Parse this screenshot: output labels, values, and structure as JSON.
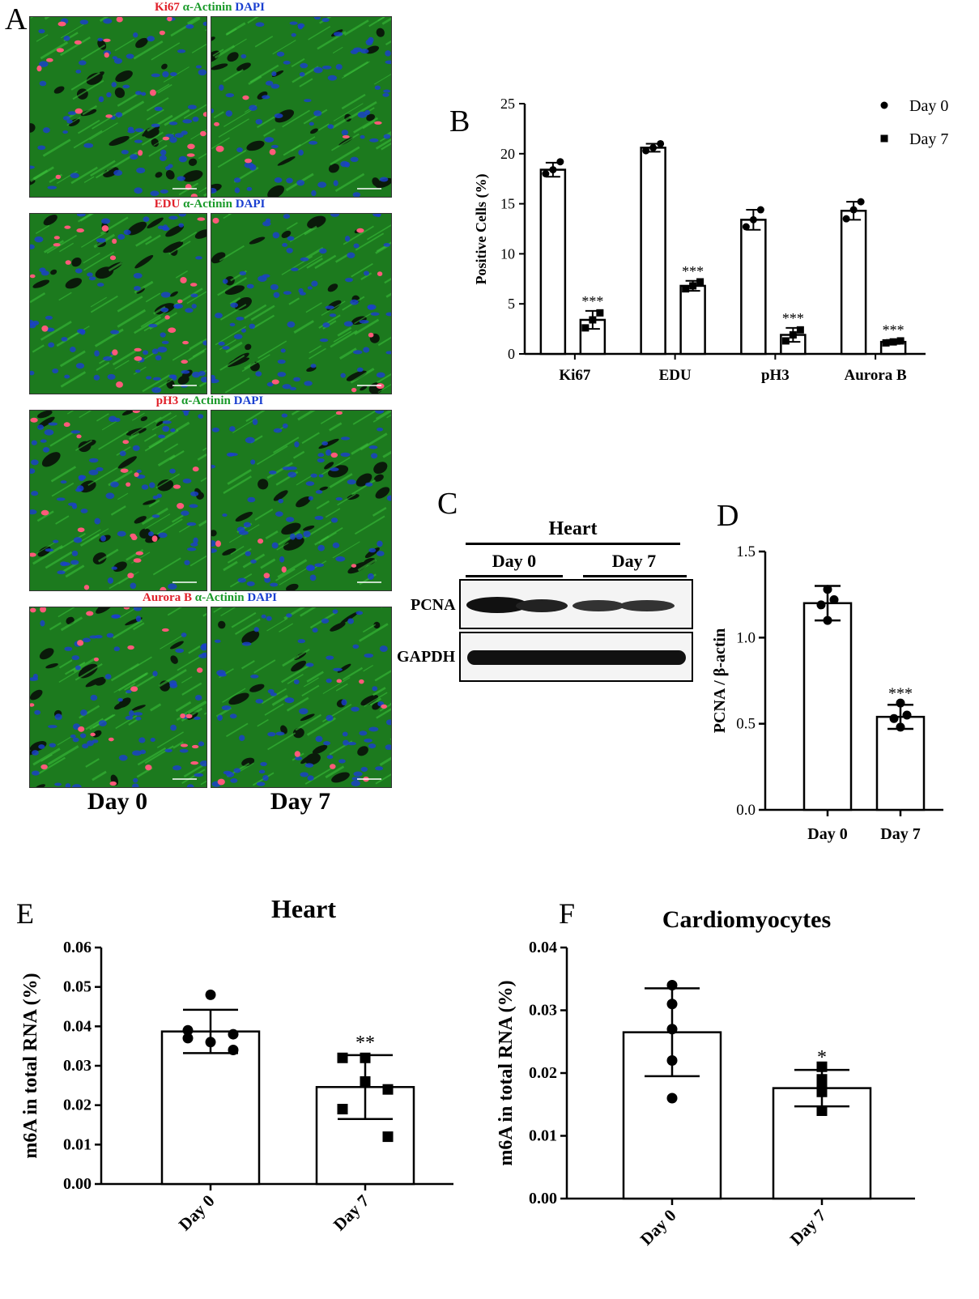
{
  "panelA": {
    "letter": "A",
    "rows": [
      {
        "marker": "Ki67",
        "actinin": "α-Actinin",
        "dapi": "DAPI"
      },
      {
        "marker": "EDU",
        "actinin": "α-Actinin",
        "dapi": "DAPI"
      },
      {
        "marker": "pH3",
        "actinin": "α-Actinin",
        "dapi": "DAPI"
      },
      {
        "marker": "Aurora B",
        "actinin": "α-Actinin",
        "dapi": "DAPI"
      }
    ],
    "group_labels": [
      "Day 0",
      "Day 7"
    ],
    "colors": {
      "marker": "#e0202a",
      "actinin": "#1a9a2a",
      "dapi": "#1a3fd0",
      "tissue": "#1c7a1e"
    }
  },
  "panelC": {
    "letter": "C",
    "tissue": "Heart",
    "groups": [
      "Day 0",
      "Day 7"
    ],
    "bands": [
      "PCNA",
      "GAPDH"
    ]
  },
  "chart_data": [
    {
      "id": "B",
      "letter": "B",
      "type": "bar",
      "categories": [
        "Ki67",
        "EDU",
        "pH3",
        "Aurora B"
      ],
      "series": [
        {
          "name": "Day 0",
          "values": [
            18.4,
            20.6,
            13.4,
            14.3
          ],
          "sd": [
            0.7,
            0.4,
            1.0,
            0.9
          ],
          "points": [
            [
              18.0,
              18.4,
              19.2
            ],
            [
              20.3,
              20.6,
              21.0
            ],
            [
              12.7,
              13.4,
              14.4
            ],
            [
              13.5,
              14.4,
              15.2
            ]
          ],
          "marker": "circle"
        },
        {
          "name": "Day 7",
          "values": [
            3.4,
            6.8,
            1.9,
            1.2
          ],
          "sd": [
            0.9,
            0.5,
            0.7,
            0.2
          ],
          "points": [
            [
              2.6,
              3.4,
              4.1
            ],
            [
              6.5,
              6.8,
              7.2
            ],
            [
              1.3,
              1.9,
              2.4
            ],
            [
              1.1,
              1.2,
              1.3
            ]
          ],
          "marker": "square"
        }
      ],
      "significance": [
        "***",
        "***",
        "***",
        "***"
      ],
      "ylabel": "Positive Cells (%)",
      "ylim": [
        0,
        25
      ],
      "yticks": [
        "0",
        "5",
        "10",
        "15",
        "20",
        "25"
      ],
      "legend": "top-right"
    },
    {
      "id": "D",
      "letter": "D",
      "type": "bar",
      "categories": [
        "Day 0",
        "Day 7"
      ],
      "values": [
        1.2,
        0.54
      ],
      "sd": [
        0.1,
        0.07
      ],
      "points": [
        [
          1.1,
          1.19,
          1.22,
          1.28
        ],
        [
          0.48,
          0.53,
          0.55,
          0.62
        ]
      ],
      "markers": [
        "circle",
        "circle"
      ],
      "significance": [
        "",
        "***"
      ],
      "ylabel": "PCNA / β-actin",
      "ylim": [
        0,
        1.5
      ],
      "yticks": [
        "0.0",
        "0.5",
        "1.0",
        "1.5"
      ]
    },
    {
      "id": "E",
      "letter": "E",
      "type": "bar",
      "title": "Heart",
      "categories": [
        "Day 0",
        "Day 7"
      ],
      "values": [
        0.0387,
        0.0246
      ],
      "sd": [
        0.0055,
        0.0081
      ],
      "points": [
        [
          0.048,
          0.039,
          0.036,
          0.034,
          0.037,
          0.038
        ],
        [
          0.032,
          0.032,
          0.026,
          0.024,
          0.019,
          0.012
        ]
      ],
      "markers": [
        "circle",
        "square"
      ],
      "significance": [
        "",
        "**"
      ],
      "ylabel": "m6A in total RNA (%)",
      "ylim": [
        0,
        0.06
      ],
      "yticks": [
        "0.00",
        "0.01",
        "0.02",
        "0.03",
        "0.04",
        "0.05",
        "0.06"
      ]
    },
    {
      "id": "F",
      "letter": "F",
      "type": "bar",
      "title": "Cardiomyocytes",
      "categories": [
        "Day 0",
        "Day 7"
      ],
      "values": [
        0.0265,
        0.0176
      ],
      "sd": [
        0.007,
        0.0029
      ],
      "points": [
        [
          0.034,
          0.031,
          0.027,
          0.022,
          0.016
        ],
        [
          0.021,
          0.019,
          0.018,
          0.017,
          0.014
        ]
      ],
      "markers": [
        "circle",
        "square"
      ],
      "significance": [
        "",
        "*"
      ],
      "ylabel": "m6A in total RNA (%)",
      "ylim": [
        0,
        0.04
      ],
      "yticks": [
        "0.00",
        "0.01",
        "0.02",
        "0.03",
        "0.04"
      ]
    }
  ]
}
